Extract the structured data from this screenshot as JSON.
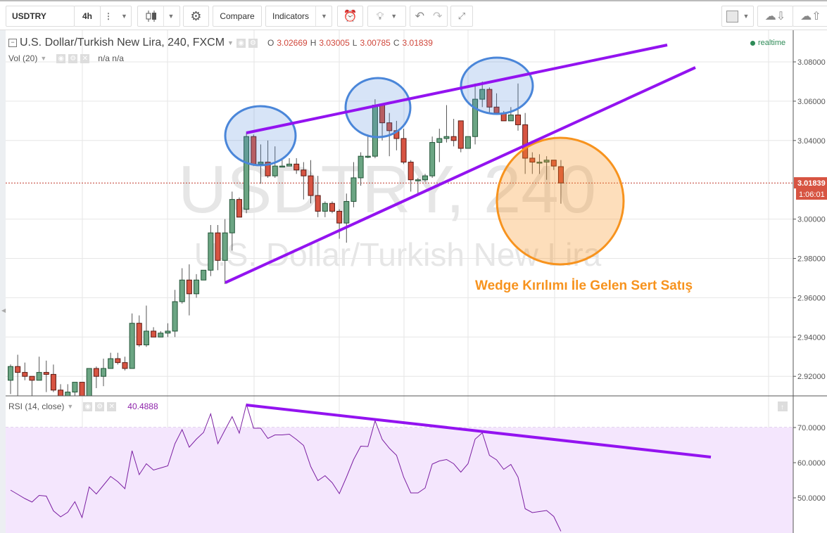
{
  "toolbar": {
    "symbol": "USDTRY",
    "interval": "4h",
    "compare_label": "Compare",
    "indicators_label": "Indicators",
    "icons": [
      "more-vertical-icon",
      "candlestick-icon",
      "gear-icon",
      "alarm-clock-plus-icon",
      "lightbulb-icon",
      "undo-icon",
      "redo-icon",
      "fullscreen-icon",
      "color-square-icon",
      "cloud-download-icon",
      "cloud-upload-icon"
    ]
  },
  "legend": {
    "title": "U.S. Dollar/Turkish New Lira, 240, FXCM",
    "o_label": "O",
    "o": "3.02669",
    "h_label": "H",
    "h": "3.03005",
    "l_label": "L",
    "l": "3.00785",
    "c_label": "C",
    "c": "3.01839",
    "vol_label": "Vol (20)",
    "vol_values": "n/a  n/a",
    "realtime": "realtime"
  },
  "watermark": {
    "line1": "USDTRY, 240",
    "line2": "U.S. Dollar/Turkish New Lira"
  },
  "annotation": {
    "text": "Wedge Kırılımı İle Gelen Sert Satış"
  },
  "price_axis": {
    "ticks": [
      "3.08000",
      "3.06000",
      "3.04000",
      "3.00000",
      "2.98000",
      "2.96000",
      "2.94000",
      "2.92000"
    ],
    "last_price": "3.01839",
    "countdown": "1:06:01"
  },
  "rsi": {
    "label": "RSI (14, close)",
    "value": "40.4888",
    "ticks": [
      "70.0000",
      "60.0000",
      "50.0000"
    ]
  },
  "colors": {
    "up": "#6ba583",
    "down": "#d75442",
    "trendline": "#9313f0",
    "highlight_circle": "#4a86d9",
    "breakdown_circle": "#f7931e",
    "rsi_line": "#7b1fa2",
    "rsi_band": "#f4e6fd",
    "realtime_dot": "#2e8b57"
  },
  "chart_data": [
    {
      "type": "candlestick",
      "title": "U.S. Dollar/Turkish New Lira, 240, FXCM",
      "ylim": [
        2.909,
        3.09
      ],
      "yticks": [
        3.08,
        3.06,
        3.04,
        3.0,
        2.98,
        2.96,
        2.94,
        2.92
      ],
      "grid": true,
      "ohlc": [
        [
          2.918,
          2.926,
          2.911,
          2.925
        ],
        [
          2.925,
          2.931,
          2.91,
          2.922
        ],
        [
          2.922,
          2.927,
          2.918,
          2.92
        ],
        [
          2.92,
          2.92,
          2.91,
          2.918
        ],
        [
          2.918,
          2.93,
          2.918,
          2.922
        ],
        [
          2.922,
          2.928,
          2.912,
          2.921
        ],
        [
          2.921,
          2.926,
          2.912,
          2.913
        ],
        [
          2.913,
          2.916,
          2.909,
          2.91
        ],
        [
          2.91,
          2.916,
          2.909,
          2.912
        ],
        [
          2.912,
          2.917,
          2.91,
          2.917
        ],
        [
          2.917,
          2.917,
          2.908,
          2.91
        ],
        [
          2.91,
          2.924,
          2.908,
          2.924
        ],
        [
          2.924,
          2.925,
          2.914,
          2.92
        ],
        [
          2.92,
          2.929,
          2.915,
          2.924
        ],
        [
          2.924,
          2.932,
          2.924,
          2.929
        ],
        [
          2.929,
          2.932,
          2.926,
          2.927
        ],
        [
          2.927,
          2.93,
          2.923,
          2.924
        ],
        [
          2.924,
          2.952,
          2.924,
          2.947
        ],
        [
          2.947,
          2.951,
          2.935,
          2.936
        ],
        [
          2.936,
          2.956,
          2.935,
          2.943
        ],
        [
          2.943,
          2.945,
          2.94,
          2.94
        ],
        [
          2.94,
          2.943,
          2.94,
          2.942
        ],
        [
          2.942,
          2.947,
          2.94,
          2.943
        ],
        [
          2.943,
          2.964,
          2.94,
          2.958
        ],
        [
          2.958,
          2.975,
          2.957,
          2.969
        ],
        [
          2.969,
          2.977,
          2.951,
          2.962
        ],
        [
          2.962,
          2.972,
          2.96,
          2.969
        ],
        [
          2.969,
          2.974,
          2.969,
          2.974
        ],
        [
          2.974,
          2.997,
          2.971,
          2.993
        ],
        [
          2.993,
          2.997,
          2.974,
          2.979
        ],
        [
          2.979,
          3.0,
          2.967,
          2.993
        ],
        [
          2.993,
          3.014,
          2.984,
          3.01
        ],
        [
          3.01,
          3.011,
          3.001,
          3.001
        ],
        [
          3.005,
          3.044,
          3.003,
          3.042
        ],
        [
          3.042,
          3.043,
          3.027,
          3.028
        ],
        [
          3.028,
          3.038,
          3.018,
          3.029
        ],
        [
          3.029,
          3.04,
          3.021,
          3.022
        ],
        [
          3.022,
          3.037,
          3.021,
          3.027
        ],
        [
          3.027,
          3.03,
          3.027,
          3.027
        ],
        [
          3.027,
          3.031,
          3.027,
          3.028
        ],
        [
          3.028,
          3.031,
          3.023,
          3.025
        ],
        [
          3.025,
          3.029,
          3.01,
          3.022
        ],
        [
          3.022,
          3.03,
          3.008,
          3.012
        ],
        [
          3.012,
          3.022,
          3.001,
          3.004
        ],
        [
          3.004,
          3.009,
          3.001,
          3.008
        ],
        [
          3.008,
          3.009,
          3.003,
          3.004
        ],
        [
          3.004,
          3.005,
          2.99,
          2.998
        ],
        [
          2.998,
          3.013,
          2.988,
          3.009
        ],
        [
          3.009,
          3.029,
          3.006,
          3.021
        ],
        [
          3.021,
          3.034,
          3.017,
          3.032
        ],
        [
          3.032,
          3.043,
          3.031,
          3.032
        ],
        [
          3.032,
          3.061,
          3.031,
          3.058
        ],
        [
          3.058,
          3.058,
          3.04,
          3.049
        ],
        [
          3.049,
          3.054,
          3.032,
          3.045
        ],
        [
          3.045,
          3.05,
          3.035,
          3.041
        ],
        [
          3.041,
          3.046,
          3.028,
          3.029
        ],
        [
          3.029,
          3.03,
          3.014,
          3.02
        ],
        [
          3.02,
          3.021,
          3.012,
          3.02
        ],
        [
          3.02,
          3.023,
          3.019,
          3.022
        ],
        [
          3.022,
          3.042,
          3.021,
          3.039
        ],
        [
          3.039,
          3.046,
          3.029,
          3.041
        ],
        [
          3.041,
          3.058,
          3.039,
          3.042
        ],
        [
          3.042,
          3.051,
          3.037,
          3.04
        ],
        [
          3.05,
          3.05,
          3.034,
          3.036
        ],
        [
          3.036,
          3.042,
          3.036,
          3.042
        ],
        [
          3.042,
          3.069,
          3.038,
          3.061
        ],
        [
          3.061,
          3.07,
          3.057,
          3.066
        ],
        [
          3.066,
          3.067,
          3.054,
          3.057
        ],
        [
          3.057,
          3.064,
          3.054,
          3.054
        ],
        [
          3.054,
          3.055,
          3.05,
          3.05
        ],
        [
          3.05,
          3.057,
          3.05,
          3.053
        ],
        [
          3.053,
          3.069,
          3.045,
          3.048
        ],
        [
          3.048,
          3.054,
          3.023,
          3.031
        ],
        [
          3.031,
          3.034,
          3.023,
          3.029
        ],
        [
          3.029,
          3.033,
          3.023,
          3.029
        ],
        [
          3.029,
          3.032,
          3.02,
          3.03
        ],
        [
          3.03,
          3.03,
          3.025,
          3.027
        ],
        [
          3.02669,
          3.03005,
          3.00785,
          3.01839
        ]
      ]
    },
    {
      "type": "line",
      "title": "RSI (14, close)",
      "ylim": [
        40,
        80
      ],
      "yticks": [
        70,
        60,
        50
      ],
      "band": [
        30,
        70
      ],
      "values": [
        52.2,
        51.0,
        49.8,
        48.8,
        50.7,
        50.5,
        46.3,
        44.6,
        45.9,
        48.9,
        44.4,
        53.1,
        51.1,
        53.6,
        56.1,
        54.6,
        52.6,
        63.4,
        56.6,
        59.7,
        57.9,
        58.5,
        59.1,
        65.4,
        69.4,
        64.4,
        66.7,
        68.6,
        73.9,
        65.4,
        69.3,
        73.1,
        68.4,
        76.6,
        69.8,
        69.8,
        66.9,
        67.9,
        67.9,
        68.1,
        66.6,
        64.9,
        58.9,
        54.9,
        56.3,
        54.3,
        51.2,
        55.9,
        60.9,
        64.7,
        64.6,
        71.9,
        66.6,
        64.1,
        62.1,
        55.9,
        51.4,
        51.4,
        52.8,
        59.6,
        60.5,
        60.9,
        59.7,
        57.3,
        59.7,
        66.7,
        68.5,
        62.1,
        60.8,
        58.1,
        59.5,
        55.9,
        46.9,
        45.8,
        46.1,
        46.4,
        44.7,
        40.4888
      ]
    }
  ]
}
